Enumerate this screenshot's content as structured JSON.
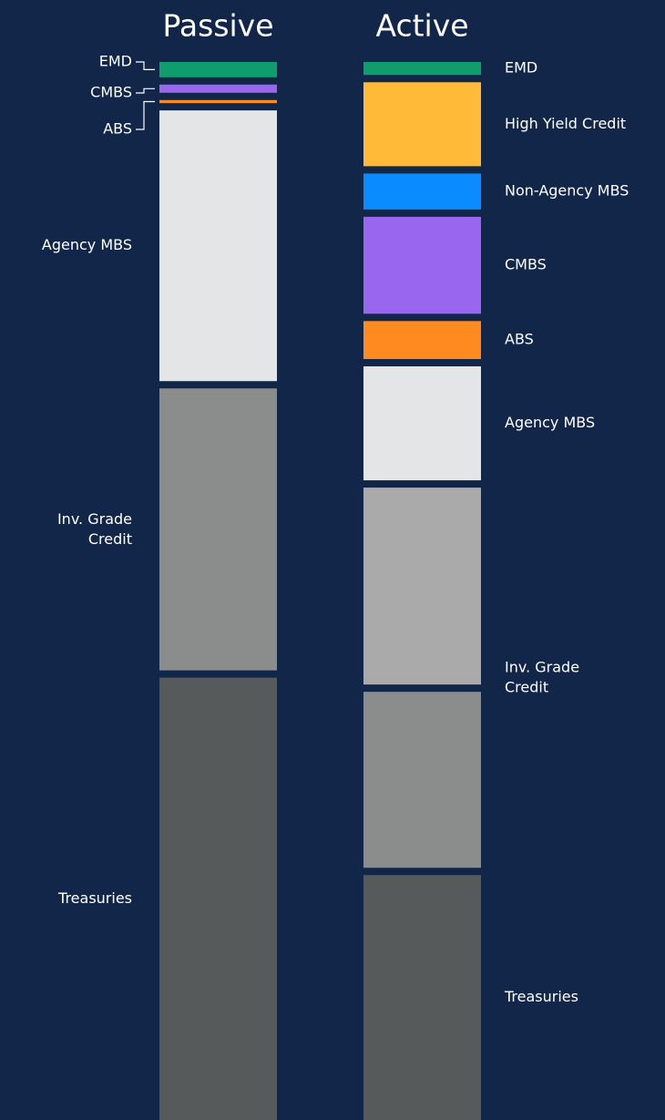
{
  "chart_data": {
    "type": "stacked-column",
    "bars": [
      {
        "name": "Passive",
        "segments": [
          {
            "label": "EMD",
            "color": "#0f9d6e",
            "value": 1.5
          },
          {
            "label": "CMBS",
            "color": "#9966f0",
            "value": 0.8
          },
          {
            "label": "ABS",
            "color": "#ff8a1f",
            "value": 0.3
          },
          {
            "label": "Agency MBS",
            "color": "#e4e5e7",
            "value": 26.5
          },
          {
            "label": "Inv. Grade Credit",
            "color": "#8b8c8c",
            "value": 27.6
          },
          {
            "label": "Treasuries",
            "color": "#575a5b",
            "value": 43.3
          }
        ]
      },
      {
        "name": "Active",
        "segments": [
          {
            "label": "EMD",
            "color": "#0f9d6e",
            "value": 1.3
          },
          {
            "label": "High Yield Credit",
            "color": "#ffbb38",
            "value": 8.4
          },
          {
            "label": "Non-Agency MBS",
            "color": "#0a8cff",
            "value": 3.6
          },
          {
            "label": "CMBS",
            "color": "#9966f0",
            "value": 9.7
          },
          {
            "label": "ABS",
            "color": "#ff8a1f",
            "value": 3.8
          },
          {
            "label": "Agency MBS",
            "color": "#e4e5e7",
            "value": 11.4
          },
          {
            "label": "Inv. Grade Credit",
            "color": "#aaaaab",
            "value": 19.7
          },
          {
            "label": null,
            "color": "#8b8c8c",
            "value": 17.6
          },
          {
            "label": "Treasuries",
            "color": "#575a5b",
            "value": 24.5
          }
        ]
      }
    ]
  }
}
